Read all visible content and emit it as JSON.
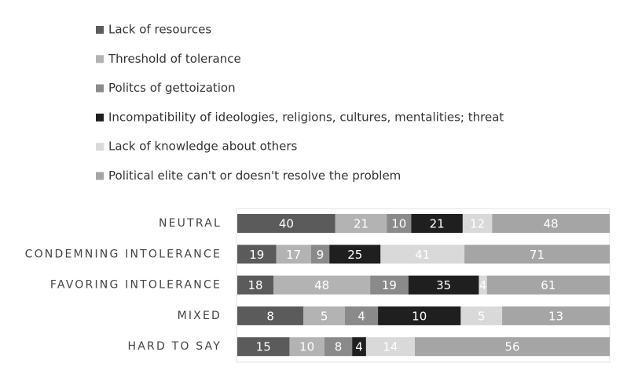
{
  "chart_data": {
    "type": "bar",
    "orientation": "horizontal",
    "stacking": "percent",
    "categories": [
      "NEUTRAL",
      "CONDEMNING INTOLERANCE",
      "FAVORING INTOLERANCE",
      "MIXED",
      "HARD TO SAY"
    ],
    "series": [
      {
        "name": "Lack of resources",
        "color": "#5b5b5b",
        "values": [
          40,
          19,
          18,
          8,
          15
        ]
      },
      {
        "name": "Threshold of tolerance",
        "color": "#b3b3b3",
        "values": [
          21,
          17,
          48,
          5,
          10
        ]
      },
      {
        "name": "Politcs of gettoization",
        "color": "#8a8a8a",
        "values": [
          10,
          9,
          19,
          4,
          8
        ]
      },
      {
        "name": "Incompatibility of ideologies, religions, cultures, mentalities; threat",
        "color": "#1f1f1f",
        "values": [
          21,
          25,
          35,
          10,
          4
        ]
      },
      {
        "name": "Lack of knowledge about others",
        "color": "#d9d9d9",
        "values": [
          12,
          41,
          4,
          5,
          14
        ]
      },
      {
        "name": "Political elite can't or doesn't resolve the problem",
        "color": "#a5a5a5",
        "values": [
          48,
          71,
          61,
          13,
          56
        ]
      }
    ],
    "data_labels": true,
    "legend": "top"
  }
}
